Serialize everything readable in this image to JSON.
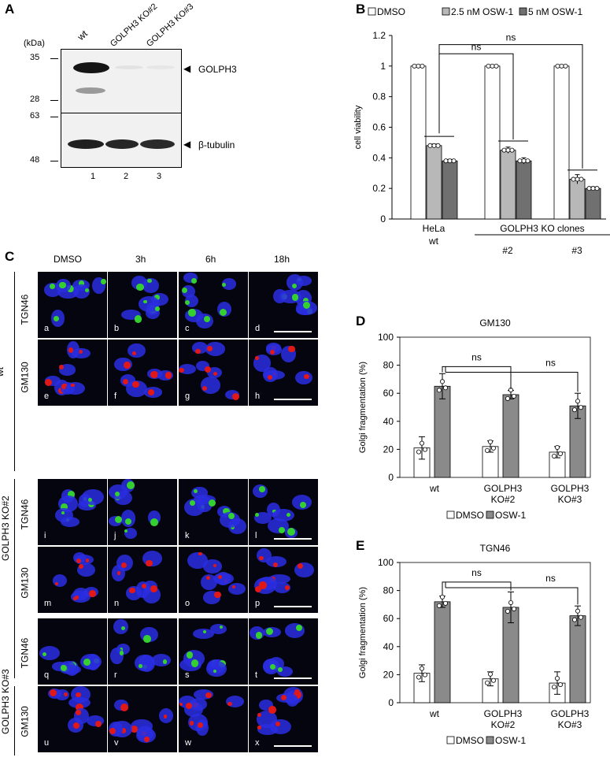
{
  "panelA": {
    "letter": "A",
    "kda_label": "(kDa)",
    "markers_top": [
      "35",
      "28"
    ],
    "markers_bottom": [
      "63",
      "48"
    ],
    "lanes": [
      "wt",
      "GOLPH3 KO#2",
      "GOLPH3 KO#3"
    ],
    "lane_numbers": [
      "1",
      "2",
      "3"
    ],
    "band_labels": [
      "GOLPH3",
      "β-tubulin"
    ],
    "arrow": "◀"
  },
  "panelB": {
    "letter": "B",
    "legend": [
      "DMSO",
      "2.5 nM OSW-1",
      "5 nM OSW-1"
    ],
    "ylabel": "cell viability",
    "yticks": [
      "0",
      "0.2",
      "0.4",
      "0.6",
      "0.8",
      "1",
      "1.2"
    ],
    "group_labels": [
      "HeLa",
      "wt",
      "GOLPH3 KO clones",
      "#2",
      "#3"
    ],
    "ns": [
      "ns",
      "ns"
    ],
    "colors": [
      "#ffffff",
      "#b8b8b8",
      "#707070"
    ]
  },
  "panelC": {
    "letter": "C",
    "columns": [
      "DMSO",
      "3h",
      "6h",
      "18h"
    ],
    "groups": [
      "wt",
      "GOLPH3 KO#2",
      "GOLPH3 KO#3"
    ],
    "rows": [
      "TGN46",
      "GM130",
      "TGN46",
      "GM130",
      "TGN46",
      "GM130"
    ],
    "tiles": [
      "a",
      "b",
      "c",
      "d",
      "e",
      "f",
      "g",
      "h",
      "i",
      "j",
      "k",
      "l",
      "m",
      "n",
      "o",
      "p",
      "q",
      "r",
      "s",
      "t",
      "u",
      "v",
      "w",
      "x"
    ]
  },
  "chart_data": [
    {
      "type": "bar",
      "panel": "B",
      "categories": [
        "HeLa wt",
        "#2",
        "#3"
      ],
      "series": [
        {
          "name": "DMSO",
          "values": [
            1.0,
            1.0,
            1.0
          ]
        },
        {
          "name": "2.5 nM OSW-1",
          "values": [
            0.48,
            0.45,
            0.26
          ]
        },
        {
          "name": "5 nM OSW-1",
          "values": [
            0.38,
            0.38,
            0.2
          ]
        }
      ],
      "errors": [
        [
          0,
          0,
          0
        ],
        [
          0.01,
          0.02,
          0.03
        ],
        [
          0.01,
          0.02,
          0.01
        ]
      ],
      "ylabel": "cell viability",
      "ylim": [
        0,
        1.2
      ],
      "annotations": [
        "ns",
        "ns"
      ]
    },
    {
      "type": "bar",
      "panel": "D",
      "title": "GM130",
      "categories": [
        "wt",
        "GOLPH3 KO#2",
        "GOLPH3 KO#3"
      ],
      "series": [
        {
          "name": "DMSO",
          "values": [
            21,
            22,
            18
          ]
        },
        {
          "name": "OSW-1",
          "values": [
            65,
            59,
            51
          ]
        }
      ],
      "errors": [
        [
          8,
          4,
          4
        ],
        [
          9,
          3,
          9
        ]
      ],
      "ylabel": "Golgi fragmentation (%)",
      "ylim": [
        0,
        100
      ],
      "annotations": [
        "ns",
        "ns"
      ]
    },
    {
      "type": "bar",
      "panel": "E",
      "title": "TGN46",
      "categories": [
        "wt",
        "GOLPH3 KO#2",
        "GOLPH3 KO#3"
      ],
      "series": [
        {
          "name": "DMSO",
          "values": [
            21,
            17,
            14
          ]
        },
        {
          "name": "OSW-1",
          "values": [
            72,
            68,
            62
          ]
        }
      ],
      "errors": [
        [
          6,
          5,
          8
        ],
        [
          4,
          11,
          7
        ]
      ],
      "ylabel": "Golgi fragmentation (%)",
      "ylim": [
        0,
        100
      ],
      "annotations": [
        "ns",
        "ns"
      ]
    }
  ],
  "panelD": {
    "letter": "D",
    "yticks": [
      "0",
      "20",
      "40",
      "60",
      "80",
      "100"
    ],
    "xlabels": [
      [
        "wt"
      ],
      [
        "GOLPH3",
        "KO#2"
      ],
      [
        "GOLPH3",
        "KO#3"
      ]
    ],
    "legend": [
      "DMSO",
      "OSW-1"
    ]
  },
  "panelE": {
    "letter": "E",
    "yticks": [
      "0",
      "20",
      "40",
      "60",
      "80",
      "100"
    ],
    "xlabels": [
      [
        "wt"
      ],
      [
        "GOLPH3",
        "KO#2"
      ],
      [
        "GOLPH3",
        "KO#3"
      ]
    ],
    "legend": [
      "DMSO",
      "OSW-1"
    ]
  }
}
